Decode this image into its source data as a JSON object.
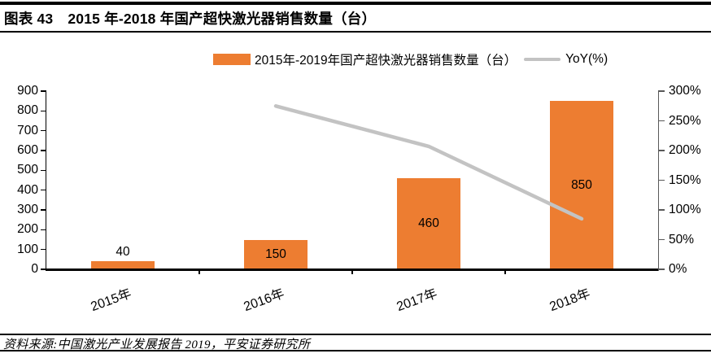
{
  "header": {
    "figure_label": "图表 43",
    "title": "2015 年-2018 年国产超快激光器销售数量（台）"
  },
  "legend": {
    "bar_label": "2015年-2019年国产超快激光器销售数量（台）",
    "line_label": "YoY(%)"
  },
  "chart_data": {
    "type": "bar",
    "combo": "bar + line (secondary axis)",
    "categories": [
      "2015年",
      "2016年",
      "2017年",
      "2018年"
    ],
    "series": [
      {
        "name": "2015年-2019年国产超快激光器销售数量（台）",
        "type": "bar",
        "axis": "left",
        "values": [
          40,
          150,
          460,
          850
        ],
        "data_labels": [
          "40",
          "150",
          "460",
          "850"
        ],
        "color": "#ED7D31"
      },
      {
        "name": "YoY(%)",
        "type": "line",
        "axis": "right",
        "values": [
          null,
          275,
          207,
          85
        ],
        "unit": "%",
        "color": "#C3C3C3"
      }
    ],
    "left_axis": {
      "min": 0,
      "max": 900,
      "step": 100,
      "tick_labels": [
        "0",
        "100",
        "200",
        "300",
        "400",
        "500",
        "600",
        "700",
        "800",
        "900"
      ]
    },
    "right_axis": {
      "min": 0,
      "max": 300,
      "step": 50,
      "unit": "%",
      "tick_labels": [
        "0%",
        "50%",
        "100%",
        "150%",
        "200%",
        "250%",
        "300%"
      ]
    },
    "grid": false,
    "legend_position": "top"
  },
  "colors": {
    "bar": "#ED7D31",
    "line": "#C3C3C3",
    "axis": "#000000",
    "right_axis_line": "#595959"
  },
  "footer": {
    "source": "资料来源:中国激光产业发展报告 2019，平安证券研究所"
  }
}
